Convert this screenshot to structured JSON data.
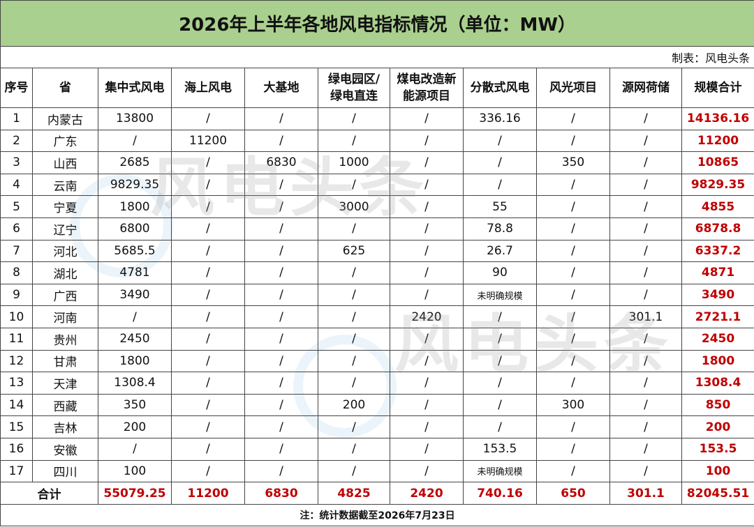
{
  "header": {
    "title": "2026年上半年各地风电指标情况（单位：MW）",
    "source": "制表：风电头条"
  },
  "table": {
    "columns": [
      "序号",
      "省",
      "集中式风电",
      "海上风电",
      "大基地",
      [
        "绿电园区/",
        "绿电直连"
      ],
      [
        "煤电改造新",
        "能源项目"
      ],
      "分散式风电",
      "风光项目",
      "源网荷储",
      "规模合计"
    ],
    "rows": [
      [
        "1",
        "内蒙古",
        "13800",
        "/",
        "/",
        "/",
        "/",
        "336.16",
        "/",
        "/",
        "14136.16"
      ],
      [
        "2",
        "广东",
        "/",
        "11200",
        "/",
        "/",
        "/",
        "/",
        "/",
        "/",
        "11200"
      ],
      [
        "3",
        "山西",
        "2685",
        "/",
        "6830",
        "1000",
        "/",
        "/",
        "350",
        "/",
        "10865"
      ],
      [
        "4",
        "云南",
        "9829.35",
        "/",
        "/",
        "/",
        "/",
        "/",
        "/",
        "/",
        "9829.35"
      ],
      [
        "5",
        "宁夏",
        "1800",
        "/",
        "/",
        "3000",
        "/",
        "55",
        "/",
        "/",
        "4855"
      ],
      [
        "6",
        "辽宁",
        "6800",
        "/",
        "/",
        "/",
        "/",
        "78.8",
        "/",
        "/",
        "6878.8"
      ],
      [
        "7",
        "河北",
        "5685.5",
        "/",
        "/",
        "625",
        "/",
        "26.7",
        "/",
        "/",
        "6337.2"
      ],
      [
        "8",
        "湖北",
        "4781",
        "/",
        "/",
        "/",
        "/",
        "90",
        "/",
        "/",
        "4871"
      ],
      [
        "9",
        "广西",
        "3490",
        "/",
        "/",
        "/",
        "/",
        "未明确规模",
        "/",
        "/",
        "3490"
      ],
      [
        "10",
        "河南",
        "/",
        "/",
        "/",
        "/",
        "2420",
        "/",
        "/",
        "301.1",
        "2721.1"
      ],
      [
        "11",
        "贵州",
        "2450",
        "/",
        "/",
        "/",
        "/",
        "/",
        "/",
        "/",
        "2450"
      ],
      [
        "12",
        "甘肃",
        "1800",
        "/",
        "/",
        "/",
        "/",
        "/",
        "/",
        "/",
        "1800"
      ],
      [
        "13",
        "天津",
        "1308.4",
        "/",
        "/",
        "/",
        "/",
        "/",
        "/",
        "/",
        "1308.4"
      ],
      [
        "14",
        "西藏",
        "350",
        "/",
        "/",
        "200",
        "/",
        "/",
        "300",
        "/",
        "850"
      ],
      [
        "15",
        "吉林",
        "200",
        "/",
        "/",
        "/",
        "/",
        "/",
        "/",
        "/",
        "200"
      ],
      [
        "16",
        "安徽",
        "/",
        "/",
        "/",
        "/",
        "/",
        "153.5",
        "/",
        "/",
        "153.5"
      ],
      [
        "17",
        "四川",
        "100",
        "/",
        "/",
        "/",
        "/",
        "未明确规模",
        "/",
        "/",
        "100"
      ]
    ],
    "total": {
      "label": "合计",
      "values": [
        "55079.25",
        "11200",
        "6830",
        "4825",
        "2420",
        "740.16",
        "650",
        "301.1",
        "82045.51"
      ]
    }
  },
  "note": "注：统计数据截至2026年7月23日",
  "watermark": "风电头条"
}
